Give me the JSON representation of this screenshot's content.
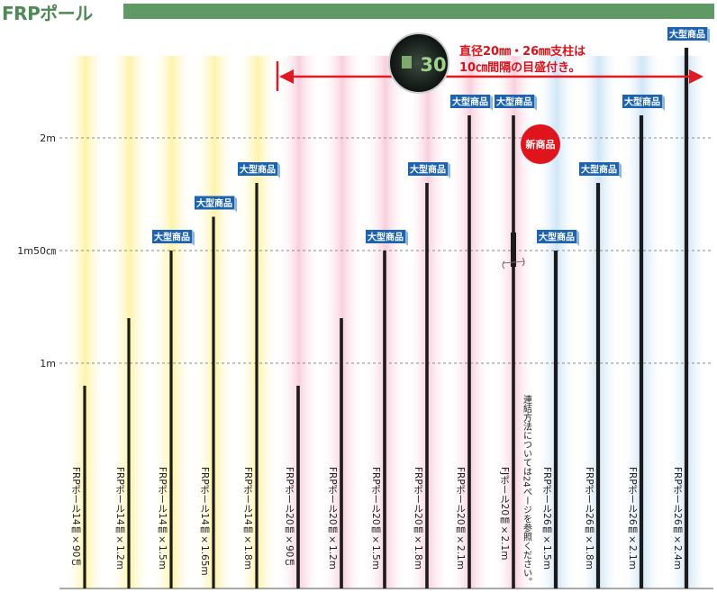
{
  "page_title": "FRPポール",
  "annotation": {
    "line1": "直径20㎜・26㎜支柱は",
    "line2": "10㎝間隔の目盛付き。",
    "gauge_number": "30"
  },
  "badge_text": "大型商品",
  "new_badge_text": "新商品",
  "connector_note": "連結方法については24ページを参照ください。",
  "colors": {
    "title": "#4e8a55",
    "title_bar": "#5f9a64",
    "arrow": "#e01a22",
    "pole": "#1b1b1b",
    "band_yellow": "#fdf7bf",
    "band_pink": "#fbdbe4",
    "band_blue": "#d6eaf8",
    "badge": "#1d64b0"
  },
  "chart_data": {
    "type": "bar",
    "ylabel": "",
    "y_ticks": [
      {
        "value": 1.0,
        "label": "1m"
      },
      {
        "value": 1.5,
        "label": "1m50㎝"
      },
      {
        "value": 2.0,
        "label": "2m"
      }
    ],
    "ylim": [
      0,
      2.45
    ],
    "bars": [
      {
        "label": "FRPポール14㎜×90㎝",
        "value": 0.9,
        "group": "14mm",
        "badge": false,
        "new": false
      },
      {
        "label": "FRPポール14㎜×1.2m",
        "value": 1.2,
        "group": "14mm",
        "badge": false,
        "new": false
      },
      {
        "label": "FRPポール14㎜×1.5m",
        "value": 1.5,
        "group": "14mm",
        "badge": true,
        "new": false
      },
      {
        "label": "FRPポール14㎜×1.65m",
        "value": 1.65,
        "group": "14mm",
        "badge": true,
        "new": false
      },
      {
        "label": "FRPポール14㎜×1.8m",
        "value": 1.8,
        "group": "14mm",
        "badge": true,
        "new": false
      },
      {
        "label": "FRPポール20㎜×90㎝",
        "value": 0.9,
        "group": "20mm",
        "badge": false,
        "new": false
      },
      {
        "label": "FRPポール20㎜×1.2m",
        "value": 1.2,
        "group": "20mm",
        "badge": false,
        "new": false
      },
      {
        "label": "FRPポール20㎜×1.5m",
        "value": 1.5,
        "group": "20mm",
        "badge": true,
        "new": false
      },
      {
        "label": "FRPポール20㎜×1.8m",
        "value": 1.8,
        "group": "20mm",
        "badge": true,
        "new": false
      },
      {
        "label": "FRPポール20㎜×2.1m",
        "value": 2.1,
        "group": "20mm",
        "badge": true,
        "new": false
      },
      {
        "label": "FJポール20㎜×2.1m",
        "value": 2.1,
        "group": "20mm",
        "badge": true,
        "new": true
      },
      {
        "label": "FRPポール26㎜×1.5m",
        "value": 1.5,
        "group": "26mm",
        "badge": true,
        "new": false
      },
      {
        "label": "FRPポール26㎜×1.8m",
        "value": 1.8,
        "group": "26mm",
        "badge": true,
        "new": false
      },
      {
        "label": "FRPポール26㎜×2.1m",
        "value": 2.1,
        "group": "26mm",
        "badge": true,
        "new": false
      },
      {
        "label": "FRPポール26㎜×2.4m",
        "value": 2.4,
        "group": "26mm",
        "badge": true,
        "new": false
      }
    ]
  }
}
